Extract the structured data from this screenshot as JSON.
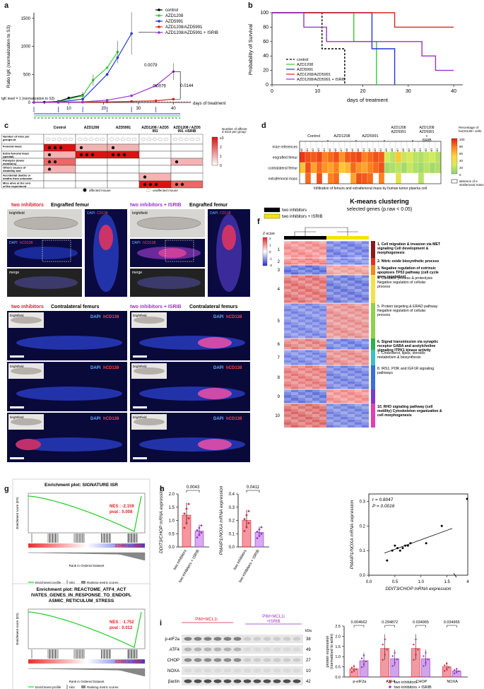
{
  "panels": {
    "a": {
      "label": "a",
      "ylabel": "Ratio IgK (normalization to S3)",
      "xlabel": "days of treatment",
      "igk_note": "IgK level = 1 (normalization to S3)",
      "legend": [
        {
          "name": "control",
          "color": "#000000"
        },
        {
          "name": "AZD1208",
          "color": "#33cc33"
        },
        {
          "name": "AZD5991",
          "color": "#2233dd"
        },
        {
          "name": "AZD1208/AZD5991",
          "color": "#dd2222"
        },
        {
          "name": "AZD1208/AZD5991 + ISRIB",
          "color": "#9933cc"
        }
      ],
      "pvals": [
        "0.0079",
        "0.0079",
        "0.0144"
      ],
      "yticks": [
        "0",
        "500",
        "1000",
        "1500"
      ],
      "xticks": [
        "10",
        "20",
        "30",
        "40"
      ],
      "key": [
        {
          "text": "Randomization",
          "color": "#000000"
        },
        {
          "text": "AZD5991 by IV injection QW",
          "color": "#2233dd"
        },
        {
          "text": "AZD1208 by oral gavage QD",
          "color": "#33cc33"
        },
        {
          "text": "ISRIB by IP injection every two day (maintenance dose)",
          "color": "#555555"
        },
        {
          "text": "charge dose of ISRIB",
          "color": "#9933cc"
        }
      ]
    },
    "b": {
      "label": "b",
      "ylabel": "Probability of Survival",
      "xlabel": "days of treatment",
      "yticks": [
        "0",
        "20",
        "40",
        "60",
        "80",
        "100"
      ],
      "xticks": [
        "0",
        "10",
        "20",
        "30",
        "40"
      ],
      "legend": [
        {
          "name": "control",
          "color": "#000000"
        },
        {
          "name": "AZD1208",
          "color": "#33cc33"
        },
        {
          "name": "AZD5991",
          "color": "#2233dd"
        },
        {
          "name": "AZD1208/AZD5991",
          "color": "#dd2222"
        },
        {
          "name": "AZD1208/AZD5991 + ISRIB",
          "color": "#9933cc"
        }
      ]
    },
    "c": {
      "label": "c",
      "columns": [
        "Control",
        "AZD1208",
        "AZD5991",
        "AZD1208 / AZD5991",
        "AZD1208 / AZD5991 +ISRIB"
      ],
      "rows": [
        "Number of mice per groups at randomization time",
        "Femoral mass",
        "Extra-femoral mass (genital)",
        "Paralysis (lower members)",
        "Others causes of disability and weakening",
        "Accidental deaths or deaths from unknown causes",
        "Mice alive at the end of the experiment"
      ],
      "scale_title": "Number of affected mice per group:",
      "scale_ticks": [
        "≥3",
        "2",
        "1",
        "0"
      ],
      "affected": "affected mouse",
      "unaffected": "unaffected mouse"
    },
    "d": {
      "label": "d",
      "groups": [
        "Control",
        "AZD1208",
        "AZD5991",
        "AZD1208 AZD5991",
        "AZD1208 AZD5991 + ISRIB"
      ],
      "rows": [
        "mice references",
        "engrafted femur",
        "contralateral femur",
        "extrafemoral mass"
      ],
      "caption": "Infiltration of femurs and extrafemoral mass by human tumor plasma cell",
      "scale_title": "Percentage of huCD138+ cells:",
      "scale_ticks": [
        "100",
        "80",
        "60",
        "40",
        "20",
        "0"
      ],
      "absence": "absence of extrafemoral mass"
    },
    "e": {
      "label": "e",
      "top_left_title": "two inhibitors",
      "top_left_sub": "Engrafted femur",
      "top_right_title": "two inhibitors + ISRIB",
      "top_right_sub": "Engrafted femur",
      "bottom_left_title": "two inhibitors",
      "bottom_left_sub": "Contralateral femurs",
      "bottom_right_title": "two inhibitors + ISRIB",
      "bottom_right_sub": "Contralateral femurs",
      "brightfield": "brightfield",
      "dapi": "DAPI",
      "cd138": "hCD138",
      "cd138b": "CD138",
      "merge": "merge"
    },
    "f": {
      "label": "f",
      "title": "K-means clustering",
      "subtitle": "selected genes (p.raw < 0.05)",
      "legend": [
        {
          "name": "two inhibitors",
          "color": "#000000"
        },
        {
          "name": "two inhibitors + ISRIB",
          "color": "#f2e600"
        }
      ],
      "zscore": "Z-score",
      "zticks": [
        "2",
        "1",
        "0",
        "-1",
        "-2"
      ],
      "clusters": [
        {
          "num": "1",
          "text": "1. Cell migration & invasion via MET signaling Cell development & morphogenesis",
          "color": "#8b1a1a",
          "bold": true
        },
        {
          "num": "2",
          "text": "2. Nitric oxide biosynthetic process",
          "color": "#e03020",
          "bold": true
        },
        {
          "num": "3",
          "text": "3. Negative regulation of extrinsic apoptosis TP53 pathway (cell cycle gene regulation)",
          "color": "#f08a1a",
          "bold": true
        },
        {
          "num": "4",
          "text": "4. Catabolic process & proteolysis Negative regulation of cellular process",
          "color": "#f5e04a",
          "bold": false
        },
        {
          "num": "5",
          "text": "5. Protein targeting & ERAD pathway Negative regulation of cellular process",
          "color": "#8fd14f",
          "bold": false
        },
        {
          "num": "6",
          "text": "6. Signal transmission via synaptic receptor GABA and acetylcholine signaling ITPK1 kinase activity",
          "color": "#2fae4a",
          "bold": true
        },
        {
          "num": "7",
          "text": "7. Cholesterol, lipids, steroids metabolism & biosynthesis",
          "color": "#3fc0c0",
          "bold": false
        },
        {
          "num": "8",
          "text": "8. IRS1, PI3K and IGF1R signaling pathways",
          "color": "#3a6fd8",
          "bold": false
        },
        {
          "num": "9",
          "text": "",
          "color": "#7a3ac8",
          "bold": false
        },
        {
          "num": "10",
          "text": "10. RHO signaling pathway (cell motility) Cytoskeleton organization & cell morphogenesis",
          "color": "#e040b0",
          "bold": true
        }
      ]
    },
    "g": {
      "label": "g",
      "plot1_title": "Enrichment plot: SIGNATURE ISR",
      "plot1_nes": "NES : -2.159",
      "plot1_pval": "pval : 0.008",
      "plot1_down": "DOWN in +ISRIB",
      "plot2_title": "Enrichment plot: REACTOME_ATF4_ACTIVATES_GENES_IN_RESPONSE_TO_ENDOPLASMIC_RETICULUM_STRESS",
      "plot2_nes": "NES : -1.752",
      "plot2_pval": "pval : 0.012",
      "plot2_down": "DOWN in +ISRIB",
      "es_label": "Enrichment score (ES)",
      "rank_label": "Rank in Ordered Dataset",
      "legend_items": [
        "Enrichment profile",
        "Hits",
        "Ranking metric scores"
      ]
    },
    "h": {
      "label": "h",
      "plot1_ylabel": "DDIT3/CHOP mRNA expression",
      "plot1_p": "0.0043",
      "plot2_ylabel": "PMAIP1/NOXA mRNA expression",
      "plot2_p": "0.0411",
      "xcats": [
        "two inhibitors",
        "two inhibitors + ISRIB"
      ],
      "plot1_yticks": [
        "0.0",
        "0.5",
        "1.0",
        "1.5",
        "2.0"
      ],
      "plot2_yticks": [
        "0.0",
        "0.1",
        "0.2",
        "0.3",
        "0.4"
      ],
      "scatter_r": "r = 0.8047",
      "scatter_p": "P = 0.0016",
      "scatter_xlabel": "DDIT3/CHOP mRNA expression",
      "scatter_ylabel": "PMAIP1/NOXA mRNA expression",
      "scatter_xticks": [
        "0.0",
        "0.5",
        "1.0",
        "1.5",
        "4"
      ],
      "scatter_yticks": [
        "0.0",
        "0.1",
        "0.2",
        "0.3"
      ]
    },
    "i": {
      "label": "i",
      "group1": "PIM+MCL1i",
      "group2": "PIM+MCL1i +ISRIB",
      "proteins": [
        "p-eIF2a",
        "ATF4",
        "CHOP",
        "NOXA",
        "βactin"
      ],
      "kda": [
        "38",
        "49",
        "27",
        "10",
        "42"
      ],
      "kda_label": "kDa",
      "bar_ylabel": "protein expression (normalized to actin)",
      "bar_cats": [
        "p-eIF2a",
        "ATF4",
        "CHOP",
        "NOXA"
      ],
      "bar_pvals": [
        "0.004662",
        "0.294872",
        "0.034965",
        "0.034965"
      ],
      "bar_yticks": [
        "0.0",
        "0.5",
        "1.0",
        "1.5",
        "2.0",
        "2.5"
      ],
      "bar_legend": [
        {
          "name": "two inhibitors",
          "color": "#dd2233"
        },
        {
          "name": "two inhibitors + ISRIB",
          "color": "#9933cc"
        }
      ]
    }
  },
  "chart_data": [
    {
      "type": "line",
      "title": "",
      "xlabel": "days of treatment",
      "ylabel": "Ratio IgK (normalization to S3)",
      "ylim": [
        0,
        1600
      ],
      "xlim": [
        0,
        45
      ],
      "series": [
        {
          "name": "control",
          "x": [
            0,
            3,
            7,
            10,
            14
          ],
          "y": [
            1,
            5,
            20,
            80,
            130
          ]
        },
        {
          "name": "AZD1208",
          "x": [
            0,
            7,
            14,
            17,
            21,
            24
          ],
          "y": [
            1,
            10,
            120,
            400,
            620,
            900
          ]
        },
        {
          "name": "AZD5991",
          "x": [
            0,
            7,
            14,
            21,
            24,
            28
          ],
          "y": [
            1,
            5,
            60,
            500,
            800,
            1230
          ]
        },
        {
          "name": "AZD1208/AZD5991",
          "x": [
            0,
            7,
            14,
            21,
            28,
            35,
            40
          ],
          "y": [
            1,
            2,
            5,
            10,
            20,
            30,
            60
          ]
        },
        {
          "name": "AZD1208/AZD5991 + ISRIB",
          "x": [
            0,
            7,
            14,
            21,
            28,
            35,
            40
          ],
          "y": [
            1,
            3,
            10,
            40,
            120,
            300,
            550
          ]
        }
      ]
    },
    {
      "type": "line",
      "title": "",
      "xlabel": "days of treatment",
      "ylabel": "Probability of Survival",
      "ylim": [
        0,
        100
      ],
      "xlim": [
        0,
        42
      ],
      "series": [
        {
          "name": "control",
          "x": [
            0,
            11,
            11,
            16,
            16
          ],
          "y": [
            100,
            100,
            50,
            50,
            0
          ]
        },
        {
          "name": "AZD1208",
          "x": [
            0,
            18,
            18,
            23,
            23
          ],
          "y": [
            100,
            100,
            60,
            60,
            0
          ]
        },
        {
          "name": "AZD5991",
          "x": [
            0,
            22,
            22,
            27,
            27
          ],
          "y": [
            100,
            100,
            50,
            50,
            0
          ]
        },
        {
          "name": "AZD1208/AZD5991",
          "x": [
            0,
            27,
            27,
            40
          ],
          "y": [
            100,
            100,
            80,
            80
          ]
        },
        {
          "name": "AZD1208/AZD5991 + ISRIB",
          "x": [
            0,
            7,
            7,
            12,
            12,
            33,
            33,
            36,
            36,
            40
          ],
          "y": [
            100,
            100,
            80,
            80,
            60,
            60,
            40,
            40,
            20,
            20
          ]
        }
      ]
    },
    {
      "type": "bar",
      "title": "",
      "categories": [
        "two inhibitors",
        "two inhibitors + ISRIB"
      ],
      "ylabel": "DDIT3/CHOP mRNA expression",
      "values": [
        1.2,
        0.6
      ],
      "ylim": [
        0,
        2.0
      ]
    },
    {
      "type": "bar",
      "title": "",
      "categories": [
        "two inhibitors",
        "two inhibitors + ISRIB"
      ],
      "ylabel": "PMAIP1/NOXA mRNA expression",
      "values": [
        0.2,
        0.11
      ],
      "ylim": [
        0,
        0.4
      ]
    },
    {
      "type": "scatter",
      "title": "",
      "xlabel": "DDIT3/CHOP mRNA expression",
      "ylabel": "PMAIP1/NOXA mRNA expression",
      "x": [
        0.35,
        0.45,
        0.5,
        0.55,
        0.6,
        0.65,
        0.7,
        0.75,
        0.8,
        1.1,
        1.4,
        3.8
      ],
      "y": [
        0.06,
        0.1,
        0.12,
        0.11,
        0.1,
        0.11,
        0.12,
        0.12,
        0.13,
        0.13,
        0.2,
        0.31
      ]
    },
    {
      "type": "bar",
      "title": "",
      "categories": [
        "p-eIF2a",
        "ATF4",
        "CHOP",
        "NOXA"
      ],
      "ylabel": "protein expression (normalized to actin)",
      "ylim": [
        0,
        2.5
      ],
      "series": [
        {
          "name": "two inhibitors",
          "values": [
            0.4,
            1.4,
            1.4,
            0.5
          ]
        },
        {
          "name": "two inhibitors + ISRIB",
          "values": [
            0.8,
            0.9,
            0.9,
            0.3
          ]
        }
      ]
    }
  ]
}
